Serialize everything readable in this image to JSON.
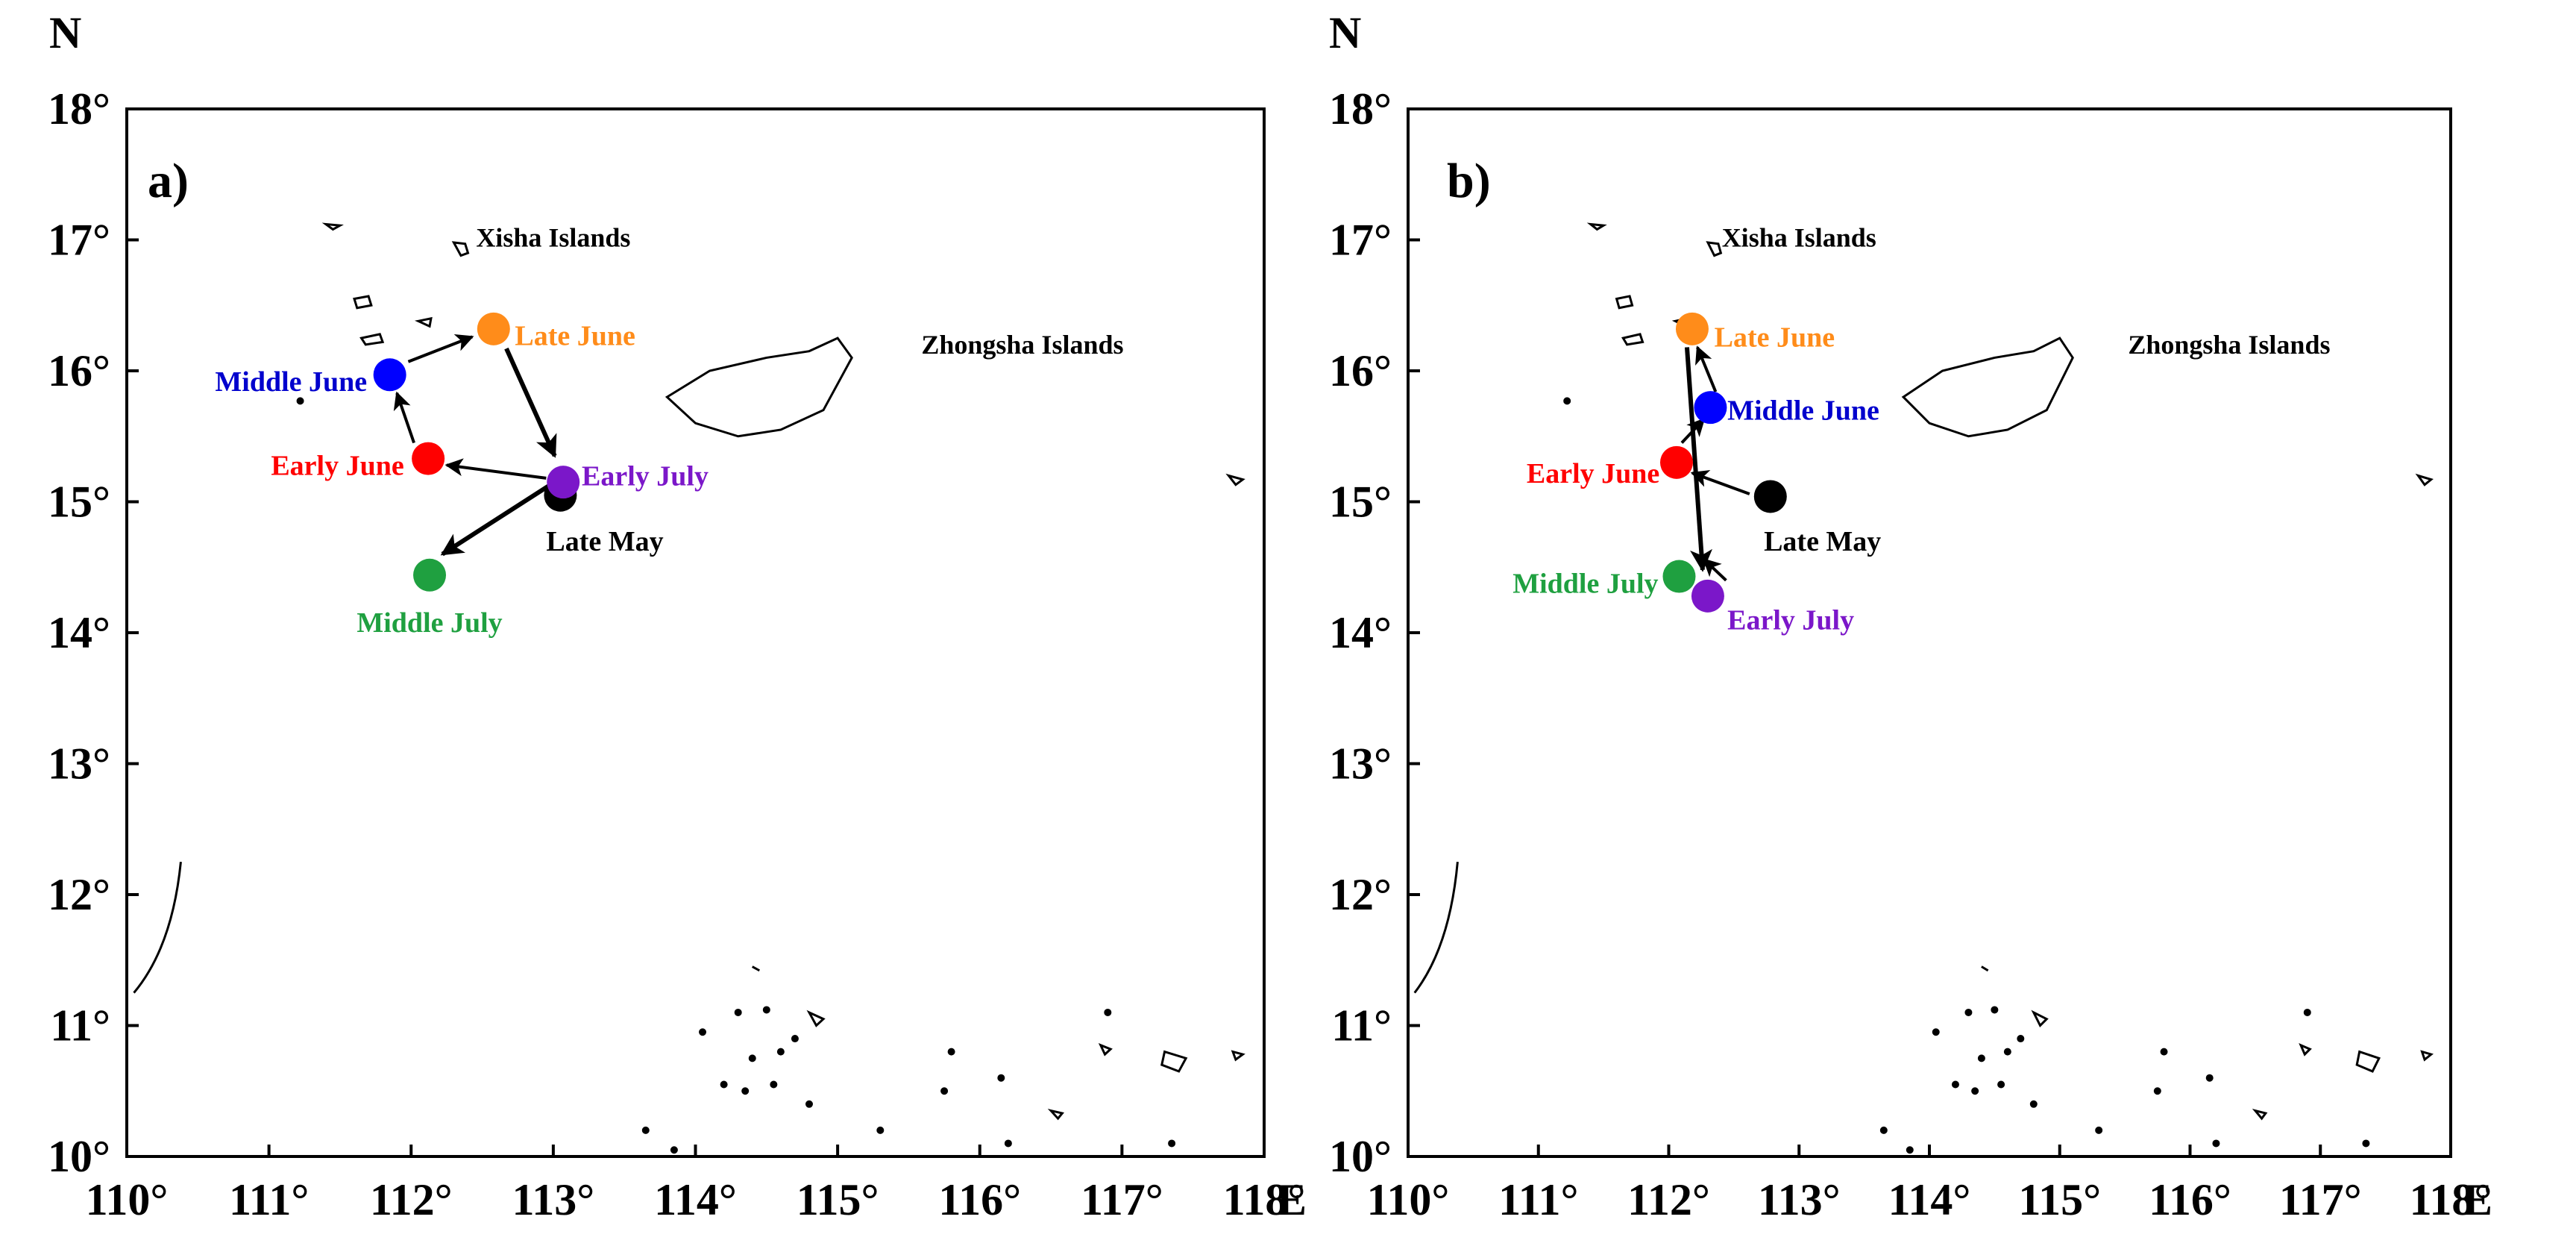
{
  "map_data": {
    "xlim": [
      110,
      118
    ],
    "ylim": [
      10,
      18
    ],
    "x_ticks": [
      {
        "value": 110,
        "label": "110°"
      },
      {
        "value": 111,
        "label": "111°"
      },
      {
        "value": 112,
        "label": "112°"
      },
      {
        "value": 113,
        "label": "113°"
      },
      {
        "value": 114,
        "label": "114°"
      },
      {
        "value": 115,
        "label": "115°"
      },
      {
        "value": 116,
        "label": "116°"
      },
      {
        "value": 117,
        "label": "117°"
      },
      {
        "value": 118,
        "label": "118°"
      }
    ],
    "y_ticks": [
      {
        "value": 10,
        "label": "10°"
      },
      {
        "value": 11,
        "label": "11°"
      },
      {
        "value": 12,
        "label": "12°"
      },
      {
        "value": 13,
        "label": "13°"
      },
      {
        "value": 14,
        "label": "14°"
      },
      {
        "value": 15,
        "label": "15°"
      },
      {
        "value": 16,
        "label": "16°"
      },
      {
        "value": 17,
        "label": "17°"
      },
      {
        "value": 18,
        "label": "18°"
      }
    ],
    "north_label": "N",
    "east_label": "E",
    "region_labels": [
      {
        "name": "xisha",
        "text": "Xisha Islands",
        "lon": 113.0,
        "lat": 16.95
      },
      {
        "name": "zhongsha",
        "text": "Zhongsha Islands",
        "lon": 116.3,
        "lat": 16.13
      }
    ],
    "panels": [
      {
        "label": "a)",
        "points": [
          {
            "name": "late-may",
            "label": "Late May",
            "lon": 113.05,
            "lat": 15.05,
            "color": "#000000",
            "text_color": "#000000",
            "label_lon": 112.95,
            "label_lat": 14.7,
            "anchor": "start"
          },
          {
            "name": "early-june",
            "label": "Early June",
            "lon": 112.12,
            "lat": 15.33,
            "color": "#ff0000",
            "text_color": "#ff0000",
            "label_lon": 111.95,
            "label_lat": 15.28,
            "anchor": "end"
          },
          {
            "name": "middle-june",
            "label": "Middle June",
            "lon": 111.85,
            "lat": 15.97,
            "color": "#0000ff",
            "text_color": "#0000cd",
            "label_lon": 111.69,
            "label_lat": 15.92,
            "anchor": "end"
          },
          {
            "name": "late-june",
            "label": "Late June",
            "lon": 112.58,
            "lat": 16.32,
            "color": "#ff8c1a",
            "text_color": "#ff8c1a",
            "label_lon": 112.73,
            "label_lat": 16.27,
            "anchor": "start"
          },
          {
            "name": "early-july",
            "label": "Early July",
            "lon": 113.07,
            "lat": 15.15,
            "color": "#7b17c9",
            "text_color": "#7b17c9",
            "label_lon": 113.2,
            "label_lat": 15.2,
            "anchor": "start"
          },
          {
            "name": "middle-july",
            "label": "Middle July",
            "lon": 112.13,
            "lat": 14.44,
            "color": "#1fa040",
            "text_color": "#1fa040",
            "label_lon": 112.13,
            "label_lat": 14.08,
            "anchor": "middle"
          }
        ],
        "arrows": [
          {
            "from": [
              112.95,
              15.18
            ],
            "to": [
              112.25,
              15.28
            ],
            "thick": false
          },
          {
            "from": [
              112.02,
              15.45
            ],
            "to": [
              111.9,
              15.83
            ],
            "thick": false
          },
          {
            "from": [
              111.98,
              16.07
            ],
            "to": [
              112.43,
              16.26
            ],
            "thick": false
          },
          {
            "from": [
              112.67,
              16.17
            ],
            "to": [
              113.01,
              15.35
            ],
            "thick": true
          },
          {
            "from": [
              112.98,
              15.13
            ],
            "to": [
              112.22,
              14.6
            ],
            "thick": true
          }
        ]
      },
      {
        "label": "b)",
        "points": [
          {
            "name": "late-may",
            "label": "Late May",
            "lon": 112.78,
            "lat": 15.04,
            "color": "#000000",
            "text_color": "#000000",
            "label_lon": 112.73,
            "label_lat": 14.7,
            "anchor": "start"
          },
          {
            "name": "early-june",
            "label": "Early June",
            "lon": 112.06,
            "lat": 15.3,
            "color": "#ff0000",
            "text_color": "#ff0000",
            "label_lon": 111.93,
            "label_lat": 15.22,
            "anchor": "end"
          },
          {
            "name": "middle-june",
            "label": "Middle June",
            "lon": 112.32,
            "lat": 15.72,
            "color": "#0000ff",
            "text_color": "#0000cd",
            "label_lon": 112.45,
            "label_lat": 15.7,
            "anchor": "start"
          },
          {
            "name": "late-june",
            "label": "Late June",
            "lon": 112.18,
            "lat": 16.32,
            "color": "#ff8c1a",
            "text_color": "#ff8c1a",
            "label_lon": 112.35,
            "label_lat": 16.26,
            "anchor": "start"
          },
          {
            "name": "early-july",
            "label": "Early July",
            "lon": 112.3,
            "lat": 14.28,
            "color": "#7b17c9",
            "text_color": "#7b17c9",
            "label_lon": 112.45,
            "label_lat": 14.1,
            "anchor": "start"
          },
          {
            "name": "middle-july",
            "label": "Middle July",
            "lon": 112.08,
            "lat": 14.43,
            "color": "#1fa040",
            "text_color": "#1fa040",
            "label_lon": 111.92,
            "label_lat": 14.38,
            "anchor": "end"
          }
        ],
        "arrows": [
          {
            "from": [
              112.62,
              15.06
            ],
            "to": [
              112.18,
              15.22
            ],
            "thick": false
          },
          {
            "from": [
              112.1,
              15.45
            ],
            "to": [
              112.27,
              15.63
            ],
            "thick": false
          },
          {
            "from": [
              112.36,
              15.84
            ],
            "to": [
              112.22,
              16.18
            ],
            "thick": false
          },
          {
            "from": [
              112.14,
              16.18
            ],
            "to": [
              112.26,
              14.48
            ],
            "thick": true
          },
          {
            "from": [
              112.44,
              14.4
            ],
            "to": [
              112.27,
              14.56
            ],
            "thick": false
          }
        ]
      }
    ]
  }
}
